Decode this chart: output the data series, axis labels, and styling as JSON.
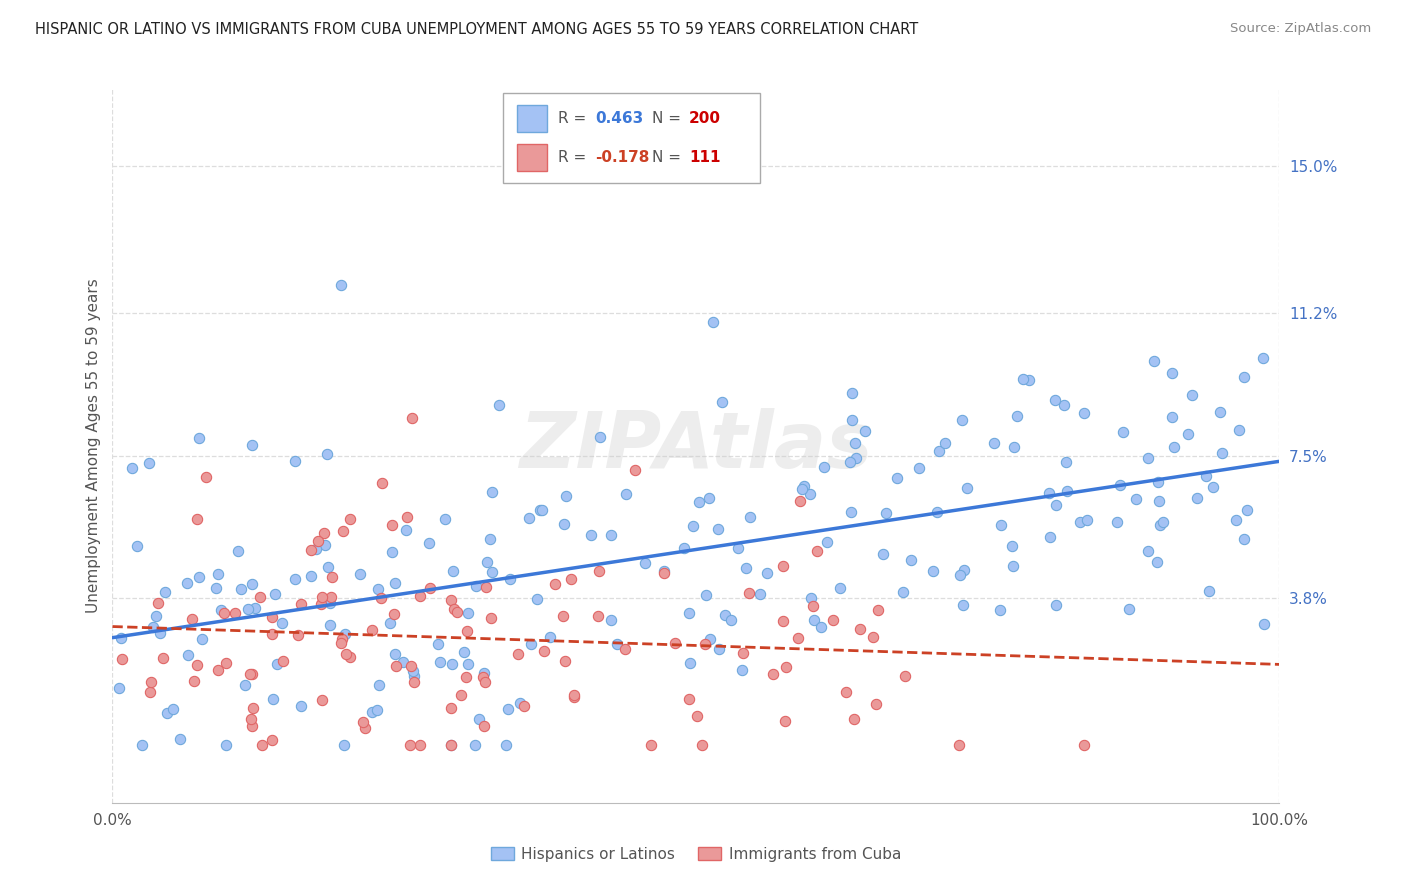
{
  "title": "HISPANIC OR LATINO VS IMMIGRANTS FROM CUBA UNEMPLOYMENT AMONG AGES 55 TO 59 YEARS CORRELATION CHART",
  "source": "Source: ZipAtlas.com",
  "ylabel": "Unemployment Among Ages 55 to 59 years",
  "xlim": [
    0,
    100
  ],
  "ylim": [
    -1.5,
    17.0
  ],
  "ytick_vals": [
    3.8,
    7.5,
    11.2,
    15.0
  ],
  "ytick_labels": [
    "3.8%",
    "7.5%",
    "11.2%",
    "15.0%"
  ],
  "blue_R": 0.463,
  "blue_N": 200,
  "pink_R": -0.178,
  "pink_N": 111,
  "blue_face_color": "#a4c2f4",
  "blue_edge_color": "#6fa8dc",
  "pink_face_color": "#ea9999",
  "pink_edge_color": "#e06666",
  "blue_line_color": "#3c78d8",
  "pink_line_color": "#cc4125",
  "legend_label_blue": "Hispanics or Latinos",
  "legend_label_pink": "Immigrants from Cuba",
  "background_color": "#ffffff",
  "grid_color": "#dddddd",
  "watermark_color": "#cccccc",
  "title_color": "#222222",
  "source_color": "#888888",
  "label_color": "#555555",
  "right_tick_color": "#4472c4",
  "legend_R_color_blue": "#3c78d8",
  "legend_R_color_pink": "#cc4125",
  "legend_N_color_blue": "#cc0000",
  "legend_N_color_pink": "#cc0000"
}
